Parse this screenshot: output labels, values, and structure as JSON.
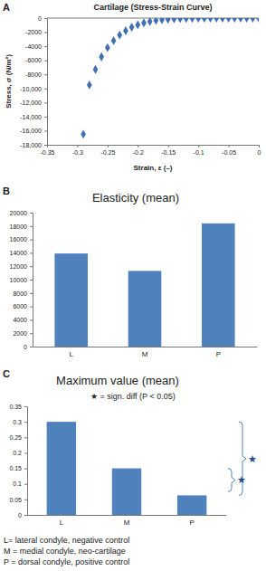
{
  "chart_data": [
    {
      "type": "scatter",
      "panel": "A",
      "title": "Cartilage (Stress-Strain Curve)",
      "x_label": "Strain, ε (–)",
      "y_label": "Stress, σ (N/m²)",
      "x": [
        -0.29,
        -0.28,
        -0.27,
        -0.26,
        -0.25,
        -0.24,
        -0.23,
        -0.22,
        -0.21,
        -0.2,
        -0.19,
        -0.18,
        -0.17,
        -0.16,
        -0.15,
        -0.14,
        -0.13,
        -0.12,
        -0.11,
        -0.1,
        -0.09,
        -0.08,
        -0.07,
        -0.06,
        -0.05,
        -0.04,
        -0.03,
        -0.02,
        -0.01,
        0
      ],
      "values": [
        -16500,
        -9500,
        -7300,
        -5500,
        -4200,
        -3200,
        -2400,
        -1800,
        -1300,
        -950,
        -680,
        -480,
        -330,
        -230,
        -160,
        -110,
        -75,
        -50,
        -35,
        -25,
        -18,
        -12,
        -8,
        -5,
        -3,
        -2,
        -1,
        -1,
        0,
        0
      ],
      "color": "#3f6fb5",
      "marker": "diamond",
      "grid": false,
      "xlim": [
        -0.35,
        0
      ],
      "xticks": [
        -0.35,
        -0.3,
        -0.25,
        -0.2,
        -0.15,
        -0.1,
        -0.05,
        0
      ],
      "ylim": [
        -18000,
        0
      ],
      "yticks": [
        {
          "value": -18000,
          "label": "-18,000"
        },
        {
          "value": -16000,
          "label": "-16,000"
        },
        {
          "value": -14000,
          "label": "-14,000"
        },
        {
          "value": -12000,
          "label": "-12,000"
        },
        {
          "value": -10000,
          "label": "-10,000"
        },
        {
          "value": -8000,
          "label": "-8000"
        },
        {
          "value": -6000,
          "label": "-6000"
        },
        {
          "value": -4000,
          "label": "-4000"
        },
        {
          "value": -2000,
          "label": "-2000"
        },
        0
      ]
    },
    {
      "type": "bar",
      "panel": "B",
      "title": "Elasticity (mean)",
      "categories": [
        "L",
        "M",
        "P"
      ],
      "values": [
        13900,
        11300,
        18400
      ],
      "color": "#4f81bd",
      "grid": false,
      "ylim": [
        0,
        20000
      ],
      "yticks": [
        0,
        2000,
        4000,
        6000,
        8000,
        10000,
        12000,
        14000,
        16000,
        18000,
        20000
      ]
    },
    {
      "type": "bar",
      "panel": "C",
      "title": "Maximum value (mean)",
      "categories": [
        "L",
        "M",
        "P"
      ],
      "values": [
        0.3,
        0.15,
        0.063
      ],
      "color": "#4f81bd",
      "grid": false,
      "ylim": [
        0,
        0.35
      ],
      "yticks": [
        0,
        0.05,
        0.1,
        0.15,
        0.2,
        0.25,
        0.3,
        0.35
      ],
      "annotation": "★ = sign. diff (P < 0.05)",
      "significance": [
        {
          "categories": [
            "L",
            "P"
          ],
          "label": "★"
        },
        {
          "categories": [
            "M",
            "P"
          ],
          "label": "★"
        }
      ]
    }
  ],
  "notes": [
    "L= lateral condyle, negative control",
    "M = medial condyle, neo-cartilage",
    "P = dorsal condyle, positive control"
  ]
}
